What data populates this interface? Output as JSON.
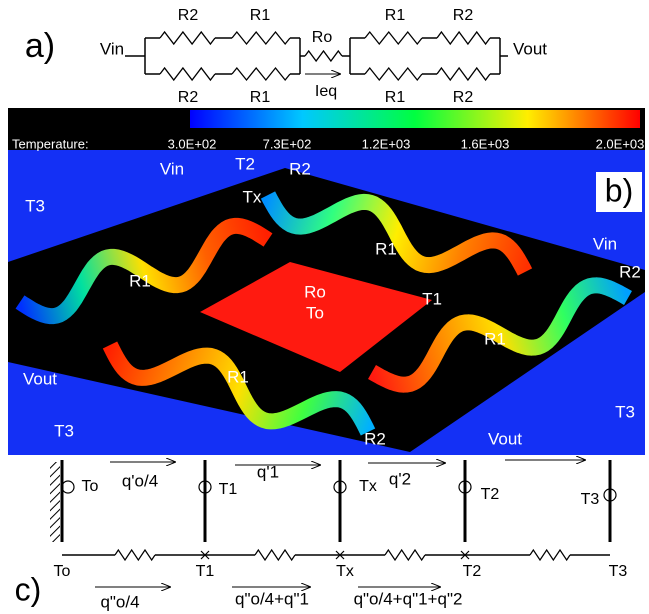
{
  "panel_a": {
    "label": "a)",
    "vin": "Vin",
    "vout": "Vout",
    "ro": "Ro",
    "ieq": "Ieq",
    "top_labels": [
      "R2",
      "R1",
      "R1",
      "R2"
    ],
    "bottom_labels": [
      "R2",
      "R1",
      "R1",
      "R2"
    ]
  },
  "panel_b": {
    "label": "b)",
    "colorbar": {
      "title": "Temperature:",
      "ticks": [
        "3.0E+02",
        "7.3E+02",
        "1.2E+03",
        "1.6E+03",
        "2.0E+03"
      ]
    },
    "labels": [
      "Vin",
      "T2",
      "R2",
      "T3",
      "Tx",
      "R1",
      "Vin",
      "R2",
      "R1",
      "Ro",
      "To",
      "T1",
      "R1",
      "Vout",
      "R1",
      "T3",
      "T3",
      "R2",
      "Vout"
    ]
  },
  "panel_c": {
    "label": "c)",
    "top_labels": [
      "To",
      "T1",
      "Tx",
      "T2",
      "T3"
    ],
    "flux_labels": [
      "q'o/4",
      "q'1",
      "q'2"
    ],
    "node_labels": [
      "To",
      "T1",
      "Tx",
      "T2",
      "T3"
    ],
    "heat_labels": [
      "q\"o/4",
      "q\"o/4+q\"1",
      "q\"o/4+q\"1+q\"2"
    ]
  }
}
